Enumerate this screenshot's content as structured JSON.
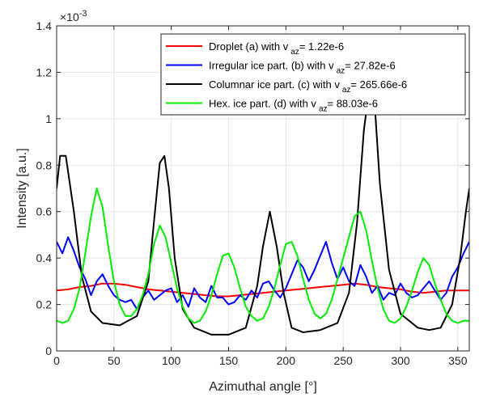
{
  "chart_data": {
    "type": "line",
    "xlabel": "Azimuthal angle [°]",
    "ylabel": "Intensity [a.u.]",
    "xlim": [
      0,
      360
    ],
    "ylim": [
      0,
      0.0014
    ],
    "y_exponent_label": "×10",
    "y_exponent_power": "-3",
    "x_ticks": [
      0,
      50,
      100,
      150,
      200,
      250,
      300,
      350
    ],
    "y_ticks": [
      0,
      0.0002,
      0.0004,
      0.0006,
      0.0008,
      0.001,
      0.0012,
      0.0014
    ],
    "y_tick_labels": [
      "0",
      "0.2",
      "0.4",
      "0.6",
      "0.8",
      "1",
      "1.2",
      "1.4"
    ],
    "grid": true,
    "legend_position": "top-right",
    "series": [
      {
        "legend_prefix": "Droplet (a) with v",
        "legend_sub": "az",
        "legend_suffix": "= 1.22e-6",
        "color": "#ff0000",
        "x": [
          0,
          10,
          20,
          30,
          40,
          50,
          60,
          70,
          80,
          90,
          100,
          110,
          120,
          130,
          140,
          150,
          160,
          170,
          180,
          190,
          200,
          210,
          220,
          230,
          240,
          250,
          260,
          270,
          280,
          290,
          300,
          310,
          320,
          330,
          340,
          350,
          360
        ],
        "y": [
          0.00026,
          0.000265,
          0.000275,
          0.00028,
          0.00029,
          0.00029,
          0.000285,
          0.000275,
          0.000265,
          0.00026,
          0.000255,
          0.00025,
          0.000245,
          0.00024,
          0.000235,
          0.000235,
          0.00024,
          0.000245,
          0.00025,
          0.000255,
          0.00026,
          0.000265,
          0.00027,
          0.000275,
          0.00028,
          0.000285,
          0.00029,
          0.000285,
          0.000275,
          0.00027,
          0.000265,
          0.000255,
          0.00025,
          0.000255,
          0.00026,
          0.00026,
          0.00026
        ]
      },
      {
        "legend_prefix": "Irregular ice part. (b) with v",
        "legend_sub": "az",
        "legend_suffix": "= 27.82e-6",
        "color": "#0000ff",
        "x": [
          0,
          5,
          10,
          15,
          20,
          25,
          30,
          35,
          40,
          45,
          50,
          55,
          60,
          65,
          70,
          75,
          80,
          85,
          90,
          95,
          100,
          105,
          110,
          115,
          120,
          125,
          130,
          135,
          140,
          145,
          150,
          155,
          160,
          165,
          170,
          175,
          180,
          185,
          190,
          195,
          200,
          205,
          210,
          215,
          220,
          225,
          230,
          235,
          240,
          245,
          250,
          255,
          260,
          265,
          270,
          275,
          280,
          285,
          290,
          295,
          300,
          305,
          310,
          315,
          320,
          325,
          330,
          335,
          340,
          345,
          350,
          355,
          360
        ],
        "y": [
          0.00047,
          0.00042,
          0.00049,
          0.00043,
          0.00036,
          0.00031,
          0.00024,
          0.0003,
          0.00033,
          0.00028,
          0.00024,
          0.00022,
          0.00021,
          0.00022,
          0.00018,
          0.00023,
          0.00026,
          0.00022,
          0.00024,
          0.00026,
          0.00027,
          0.00021,
          0.00024,
          0.00019,
          0.00027,
          0.00023,
          0.00021,
          0.00028,
          0.00023,
          0.00023,
          0.0002,
          0.00021,
          0.00024,
          0.00022,
          0.00026,
          0.00023,
          0.00029,
          0.0003,
          0.00026,
          0.00023,
          0.00027,
          0.00033,
          0.00039,
          0.00036,
          0.0003,
          0.00035,
          0.00041,
          0.00047,
          0.00038,
          0.00031,
          0.00036,
          0.0003,
          0.00028,
          0.00037,
          0.00032,
          0.00025,
          0.00028,
          0.00022,
          0.00025,
          0.00024,
          0.00029,
          0.00025,
          0.00023,
          0.00024,
          0.00027,
          0.0003,
          0.00026,
          0.00022,
          0.00025,
          0.00032,
          0.00036,
          0.00042,
          0.00047
        ]
      },
      {
        "legend_prefix": "Columnar ice part. (c) with v",
        "legend_sub": "az",
        "legend_suffix": "= 265.66e-6",
        "color": "#000000",
        "x": [
          0,
          3,
          8,
          15,
          22,
          30,
          40,
          55,
          70,
          80,
          85,
          90,
          94,
          98,
          103,
          110,
          120,
          135,
          150,
          165,
          175,
          180,
          186,
          192,
          198,
          205,
          215,
          230,
          245,
          255,
          262,
          268,
          272,
          277,
          282,
          290,
          300,
          315,
          325,
          335,
          345,
          352,
          357,
          360
        ],
        "y": [
          0.0007,
          0.00084,
          0.00084,
          0.0006,
          0.00032,
          0.00017,
          0.00012,
          0.00011,
          0.00015,
          0.0003,
          0.00056,
          0.00081,
          0.00084,
          0.0007,
          0.0004,
          0.00018,
          0.0001,
          7e-05,
          7e-05,
          0.0001,
          0.00028,
          0.00045,
          0.0006,
          0.00045,
          0.00025,
          0.0001,
          8e-05,
          9e-05,
          0.00012,
          0.00025,
          0.00055,
          0.00095,
          0.0011,
          0.0011,
          0.00072,
          0.00035,
          0.00016,
          0.0001,
          9e-05,
          0.0001,
          0.0002,
          0.0004,
          0.0006,
          0.0007
        ]
      },
      {
        "legend_prefix": "Hex. ice part. (d) with v",
        "legend_sub": "az",
        "legend_suffix": "= 88.03e-6",
        "color": "#00ee00",
        "x": [
          0,
          5,
          10,
          15,
          20,
          25,
          30,
          35,
          40,
          45,
          50,
          55,
          60,
          65,
          70,
          75,
          80,
          85,
          90,
          95,
          100,
          105,
          110,
          115,
          120,
          125,
          130,
          135,
          140,
          145,
          150,
          155,
          160,
          165,
          170,
          175,
          180,
          185,
          190,
          195,
          200,
          205,
          210,
          215,
          220,
          225,
          230,
          235,
          240,
          245,
          250,
          255,
          260,
          265,
          270,
          275,
          280,
          285,
          290,
          295,
          300,
          305,
          310,
          315,
          320,
          325,
          330,
          335,
          340,
          345,
          350,
          355,
          360
        ],
        "y": [
          0.00013,
          0.00012,
          0.00013,
          0.00018,
          0.00027,
          0.00042,
          0.00058,
          0.0007,
          0.00062,
          0.00045,
          0.0003,
          0.0002,
          0.00015,
          0.00015,
          0.00018,
          0.00024,
          0.00033,
          0.00046,
          0.00054,
          0.00049,
          0.00038,
          0.00027,
          0.00019,
          0.00014,
          0.00012,
          0.00013,
          0.00017,
          0.00024,
          0.00033,
          0.00041,
          0.00042,
          0.00036,
          0.00027,
          0.00019,
          0.00015,
          0.00013,
          0.00014,
          0.00019,
          0.00027,
          0.00037,
          0.00046,
          0.00047,
          0.00041,
          0.00031,
          0.00022,
          0.00016,
          0.00014,
          0.00016,
          0.00022,
          0.00031,
          0.0004,
          0.00049,
          0.00058,
          0.0006,
          0.00052,
          0.00039,
          0.00027,
          0.00018,
          0.00013,
          0.00012,
          0.00014,
          0.00019,
          0.00026,
          0.00034,
          0.0004,
          0.00037,
          0.00029,
          0.00022,
          0.00016,
          0.00013,
          0.00012,
          0.00013,
          0.00013
        ]
      }
    ]
  }
}
